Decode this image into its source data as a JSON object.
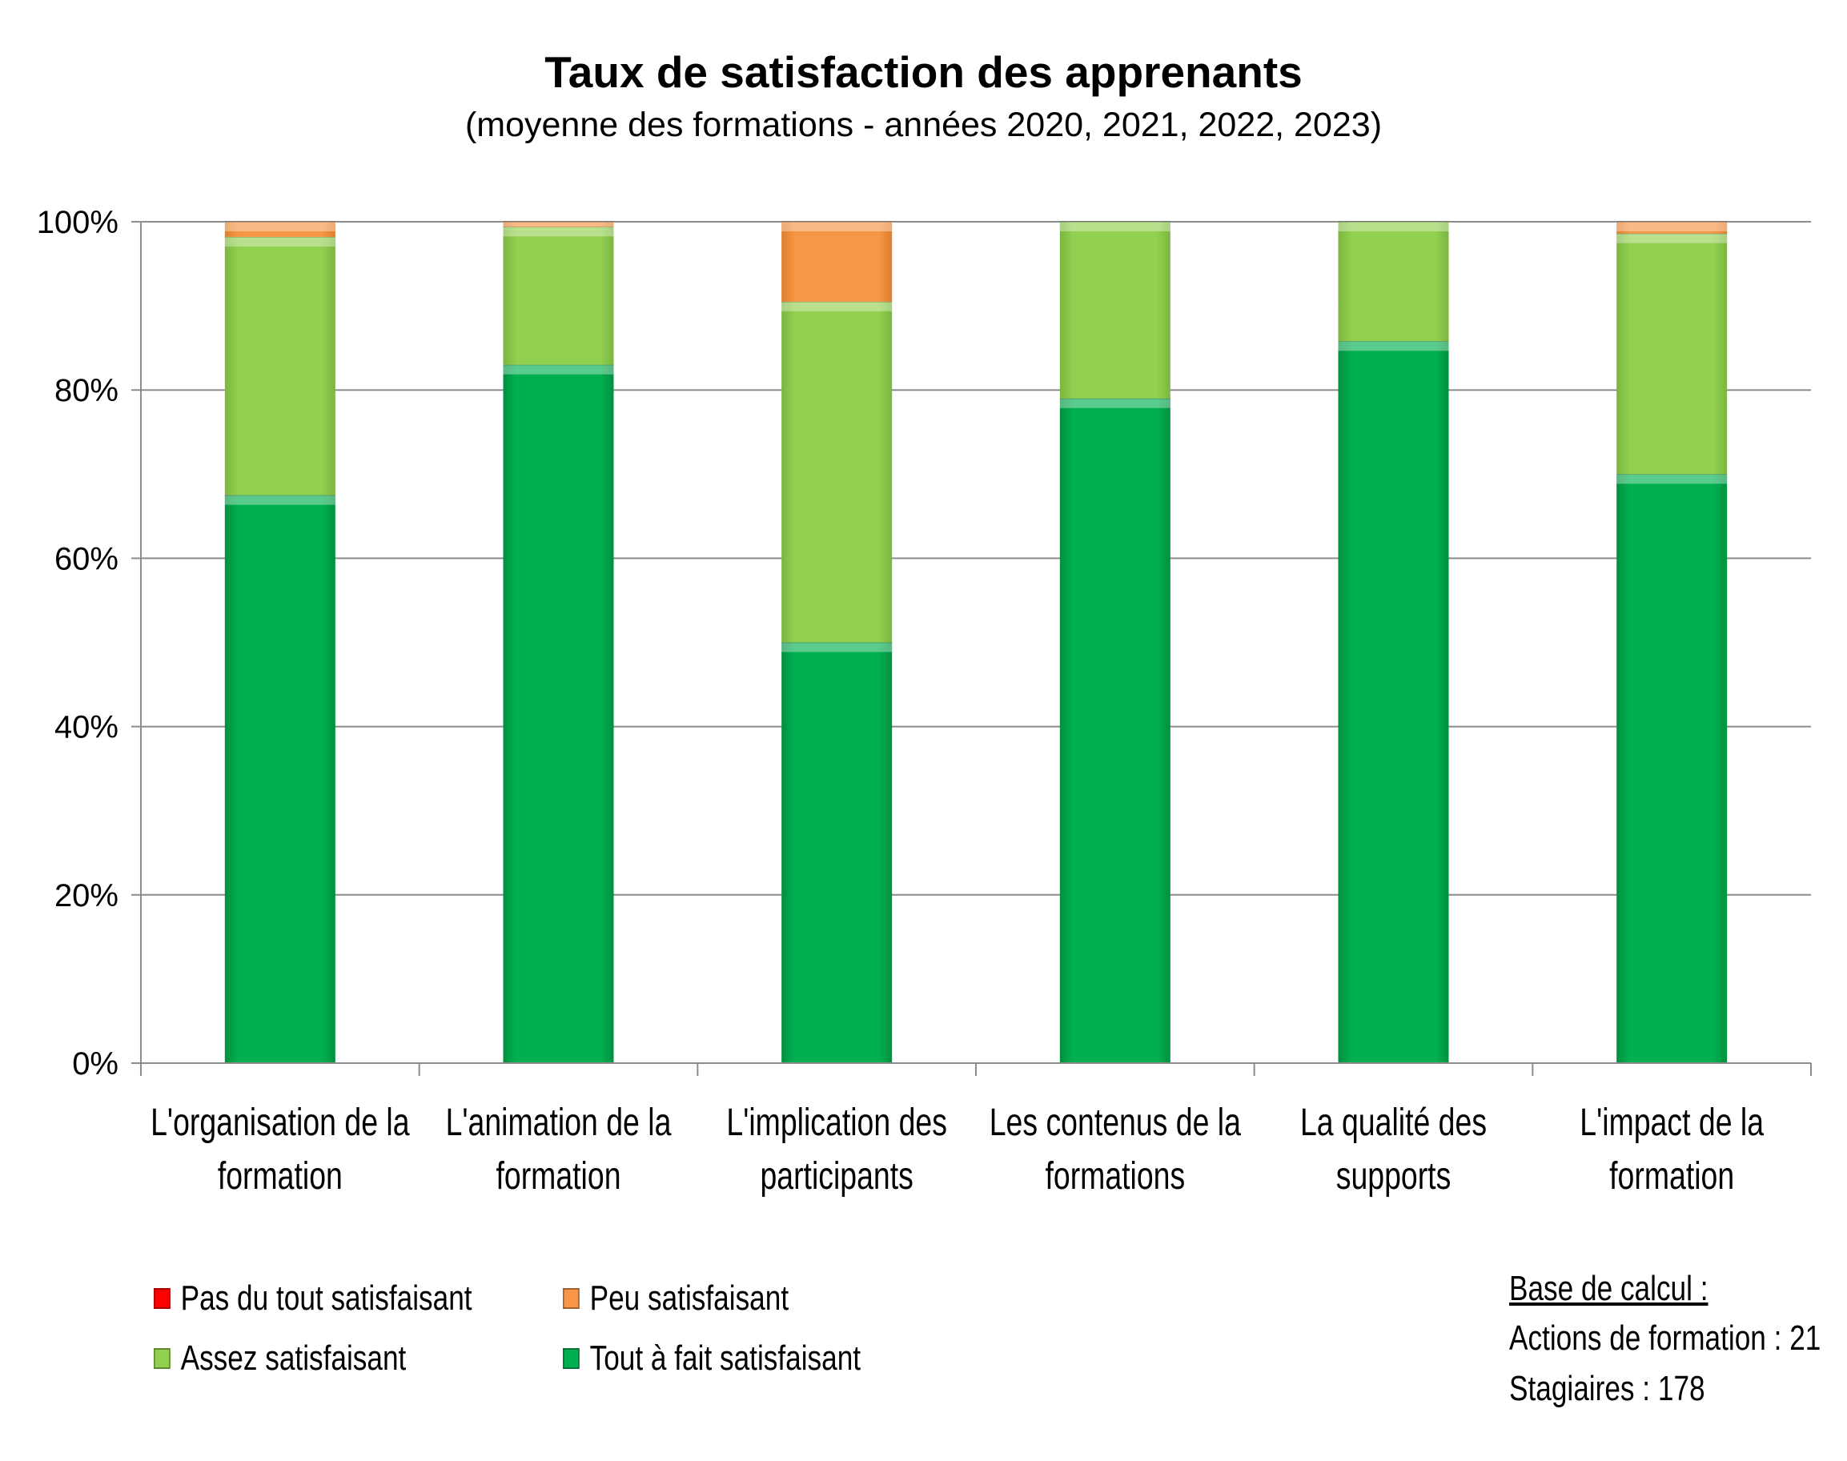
{
  "chart_data": {
    "type": "bar",
    "stacked": true,
    "title": "Taux de satisfaction des apprenants",
    "subtitle": "(moyenne des formations - années 2020, 2021, 2022, 2023)",
    "categories": [
      [
        "L'organisation de la",
        "formation"
      ],
      [
        "L'animation de la",
        "formation"
      ],
      [
        "L'implication des",
        "participants"
      ],
      [
        "Les contenus de la",
        "formations"
      ],
      [
        "La qualité des",
        "supports"
      ],
      [
        "L'impact de la",
        "formation"
      ]
    ],
    "series": [
      {
        "name": "Tout à fait satisfaisant",
        "color": "#00b050",
        "values": [
          67.5,
          83,
          50,
          79,
          85.8,
          70
        ]
      },
      {
        "name": "Assez satisfaisant",
        "color": "#92d050",
        "values": [
          30.7,
          16.4,
          40.5,
          21,
          14.2,
          28.6
        ]
      },
      {
        "name": "Peu satisfaisant",
        "color": "#f79646",
        "values": [
          1.8,
          0.6,
          9.5,
          0,
          0,
          1.4
        ]
      },
      {
        "name": "Pas du tout satisfaisant",
        "color": "#ff0000",
        "values": [
          0,
          0,
          0,
          0,
          0,
          0
        ]
      }
    ],
    "yticks": [
      "0%",
      "20%",
      "40%",
      "60%",
      "80%",
      "100%"
    ],
    "ylim": [
      0,
      100
    ],
    "grid": true,
    "legend_position": "bottom-left"
  },
  "legend": [
    {
      "label": "Pas du tout satisfaisant",
      "color": "#ff0000"
    },
    {
      "label": "Peu satisfaisant",
      "color": "#f79646"
    },
    {
      "label": "Assez satisfaisant",
      "color": "#92d050"
    },
    {
      "label": "Tout à fait satisfaisant",
      "color": "#00b050"
    }
  ],
  "note": {
    "heading": "Base de calcul :",
    "line1": "Actions de formation : 21",
    "line2": "Stagiaires : 178"
  }
}
